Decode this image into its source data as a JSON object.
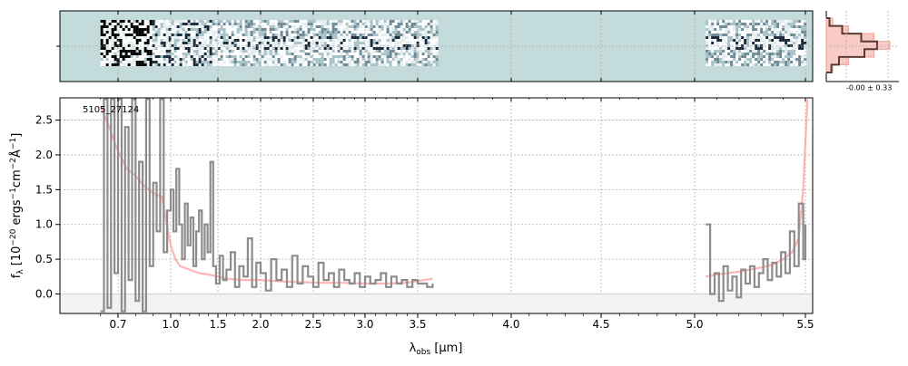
{
  "figure": {
    "object_id": "5105_27124",
    "sigma_label": "-0.00 ± 0.33",
    "colors": {
      "spectrum": "#8c8c8c",
      "model": "#ff9c9c",
      "twod_bg": "#c4dbdb",
      "grid": "#b0b0b0",
      "histogram_data": "#5a3a34",
      "histogram_model": "#f4a8a0"
    }
  },
  "chart_data": [
    {
      "type": "heatmap",
      "panel": "2d-spectrum",
      "x_axis": "wavelength",
      "regions_with_data": [
        [
          0.6,
          3.6
        ],
        [
          5.05,
          5.5
        ]
      ],
      "colormap": "bone_r"
    },
    {
      "type": "line",
      "panel": "1d-spectrum",
      "xlabel": "λ_obs [μm]",
      "ylabel": "f_λ [10^-20 ergs^-1 cm^-2 Å^-1]",
      "xticks": [
        0.7,
        1.0,
        1.5,
        2.0,
        2.5,
        3.0,
        3.5,
        4.0,
        4.5,
        5.0,
        5.5
      ],
      "xtick_labels": [
        "0.7",
        "1.0",
        "1.5",
        "2.0",
        "2.5",
        "3.0",
        "3.5",
        "4.0",
        "4.5",
        "5.0",
        "5.5"
      ],
      "yticks": [
        0.0,
        0.5,
        1.0,
        1.5,
        2.0,
        2.5
      ],
      "ytick_labels": [
        "0.0",
        "0.5",
        "1.0",
        "1.5",
        "2.0",
        "2.5"
      ],
      "ylim": [
        -0.28,
        2.82
      ],
      "xlim": [
        0.6,
        5.52
      ],
      "grid": true,
      "series": [
        {
          "role": "data",
          "segments": [
            {
              "x": [
                0.6,
                0.62,
                0.64,
                0.66,
                0.68,
                0.7,
                0.72,
                0.74,
                0.76,
                0.78,
                0.8,
                0.82,
                0.84,
                0.86,
                0.88,
                0.9,
                0.92,
                0.94,
                0.96,
                0.98,
                1.0,
                1.03,
                1.06,
                1.09,
                1.12,
                1.15,
                1.18,
                1.21,
                1.24,
                1.27,
                1.3,
                1.33,
                1.36,
                1.39,
                1.42,
                1.45,
                1.48,
                1.52,
                1.56,
                1.6,
                1.65,
                1.7,
                1.75,
                1.8,
                1.85,
                1.9,
                1.95,
                2.0,
                2.05,
                2.1,
                2.15,
                2.2,
                2.25,
                2.3,
                2.35,
                2.4,
                2.45,
                2.5,
                2.55,
                2.6,
                2.65,
                2.7,
                2.75,
                2.8,
                2.85,
                2.9,
                2.95,
                3.0,
                3.05,
                3.1,
                3.15,
                3.2,
                3.25,
                3.3,
                3.35,
                3.4,
                3.45,
                3.5,
                3.55,
                3.58
              ],
              "y": [
                -0.25,
                2.8,
                -0.2,
                2.8,
                0.3,
                2.8,
                -0.25,
                2.4,
                0.2,
                2.8,
                -0.1,
                1.9,
                -0.25,
                2.8,
                0.4,
                1.6,
                0.9,
                2.8,
                0.6,
                1.2,
                1.5,
                0.9,
                1.8,
                1.0,
                0.5,
                1.3,
                0.7,
                1.1,
                0.4,
                0.9,
                1.2,
                0.5,
                1.0,
                0.6,
                1.9,
                0.4,
                0.15,
                0.55,
                0.2,
                0.35,
                0.6,
                0.1,
                0.4,
                0.25,
                0.8,
                0.1,
                0.45,
                0.3,
                0.05,
                0.5,
                0.2,
                0.35,
                0.1,
                0.55,
                0.15,
                0.4,
                0.25,
                0.1,
                0.45,
                0.2,
                0.3,
                0.1,
                0.35,
                0.2,
                0.15,
                0.3,
                0.1,
                0.25,
                0.15,
                0.2,
                0.3,
                0.1,
                0.25,
                0.15,
                0.2,
                0.1,
                0.2,
                0.15,
                0.1,
                0.15
              ]
            },
            {
              "x": [
                5.05,
                5.07,
                5.09,
                5.11,
                5.13,
                5.15,
                5.17,
                5.19,
                5.21,
                5.23,
                5.25,
                5.27,
                5.29,
                5.31,
                5.33,
                5.35,
                5.37,
                5.39,
                5.41,
                5.43,
                5.45,
                5.47,
                5.49,
                5.5
              ],
              "y": [
                1.0,
                0.0,
                0.3,
                -0.1,
                0.4,
                0.05,
                0.25,
                -0.05,
                0.35,
                0.15,
                0.4,
                0.1,
                0.3,
                0.5,
                0.2,
                0.45,
                0.25,
                0.6,
                0.3,
                0.9,
                0.4,
                1.3,
                0.5,
                1.0
              ]
            }
          ]
        },
        {
          "role": "model",
          "segments": [
            {
              "x": [
                0.6,
                0.65,
                0.7,
                0.75,
                0.8,
                0.85,
                0.9,
                0.95,
                1.0,
                1.05,
                1.1,
                1.2,
                1.3,
                1.4,
                1.5,
                1.6,
                1.8,
                2.0,
                2.2,
                2.4,
                2.6,
                2.8,
                3.0,
                3.2,
                3.4,
                3.58
              ],
              "y": [
                2.7,
                2.4,
                2.05,
                1.8,
                1.7,
                1.55,
                1.45,
                1.4,
                0.7,
                0.5,
                0.4,
                0.35,
                0.3,
                0.28,
                0.25,
                0.22,
                0.2,
                0.2,
                0.18,
                0.17,
                0.16,
                0.16,
                0.15,
                0.15,
                0.16,
                0.22
              ]
            },
            {
              "x": [
                5.05,
                5.1,
                5.15,
                5.2,
                5.25,
                5.3,
                5.35,
                5.4,
                5.44,
                5.47,
                5.49,
                5.5,
                5.51
              ],
              "y": [
                0.25,
                0.28,
                0.3,
                0.32,
                0.35,
                0.38,
                0.42,
                0.5,
                0.6,
                0.8,
                1.5,
                2.2,
                2.8
              ]
            }
          ]
        }
      ]
    },
    {
      "type": "bar",
      "panel": "noise-histogram",
      "orientation": "horizontal",
      "series": [
        {
          "role": "data",
          "values": [
            0.05,
            0.25,
            0.55,
            0.8,
            0.6,
            0.2,
            0.08
          ]
        },
        {
          "role": "model",
          "values": [
            0.1,
            0.35,
            0.75,
            1.0,
            0.75,
            0.35,
            0.1
          ]
        }
      ]
    }
  ]
}
